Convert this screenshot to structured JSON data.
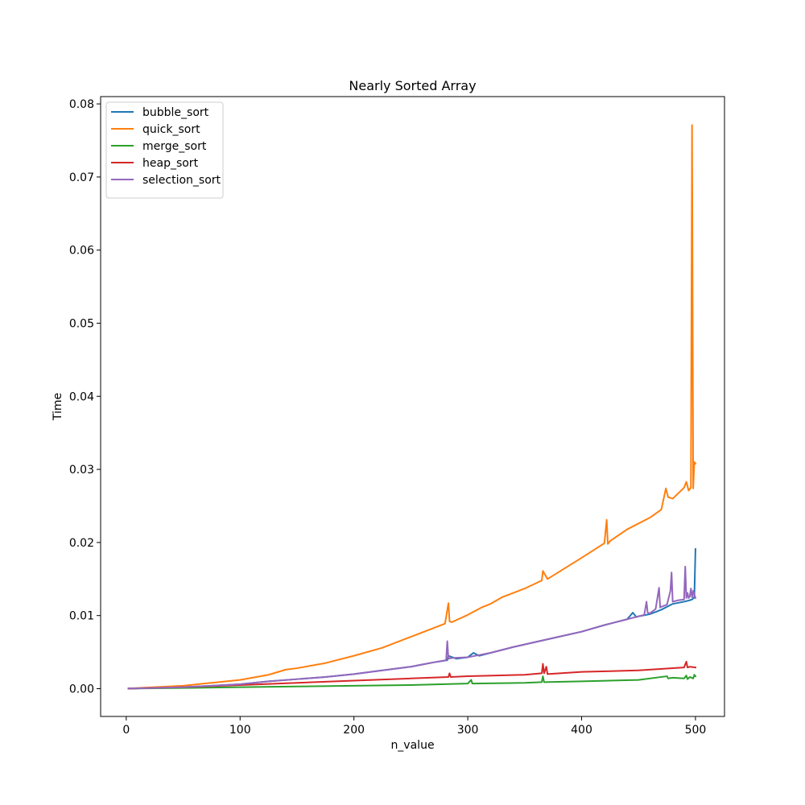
{
  "chart_data": {
    "type": "line",
    "title": "Nearly Sorted Array",
    "xlabel": "n_value",
    "ylabel": "Time",
    "xlim": [
      -22.5,
      525.5
    ],
    "ylim": [
      -0.0038,
      0.081
    ],
    "xticks": [
      0,
      100,
      200,
      300,
      400,
      500
    ],
    "xtick_labels": [
      "0",
      "100",
      "200",
      "300",
      "400",
      "500"
    ],
    "yticks": [
      0.0,
      0.01,
      0.02,
      0.03,
      0.04,
      0.05,
      0.06,
      0.07,
      0.08
    ],
    "ytick_labels": [
      "0.00",
      "0.01",
      "0.02",
      "0.03",
      "0.04",
      "0.05",
      "0.06",
      "0.07",
      "0.08"
    ],
    "grid": false,
    "legend_position": "top-left",
    "series": [
      {
        "name": "bubble_sort",
        "color": "#1f77b4",
        "x": [
          2,
          25,
          50,
          75,
          100,
          125,
          150,
          175,
          200,
          225,
          250,
          260,
          270,
          282,
          283,
          290,
          300,
          305,
          310,
          320,
          340,
          360,
          380,
          400,
          420,
          440,
          445,
          448,
          450,
          460,
          470,
          480,
          490,
          495,
          497,
          499,
          500
        ],
        "y": [
          2e-05,
          0.0001,
          0.0002,
          0.0004,
          0.0006,
          0.001,
          0.0013,
          0.0016,
          0.002,
          0.0025,
          0.003,
          0.0033,
          0.0036,
          0.0039,
          0.0045,
          0.0041,
          0.0043,
          0.0049,
          0.0045,
          0.0049,
          0.0057,
          0.0064,
          0.0071,
          0.0078,
          0.0087,
          0.0095,
          0.0104,
          0.0098,
          0.0099,
          0.0102,
          0.0108,
          0.0116,
          0.0119,
          0.0121,
          0.0122,
          0.0125,
          0.0191
        ]
      },
      {
        "name": "quick_sort",
        "color": "#ff7f0e",
        "x": [
          2,
          25,
          50,
          75,
          100,
          125,
          140,
          150,
          175,
          200,
          225,
          250,
          270,
          280,
          283,
          284,
          286,
          300,
          312,
          320,
          330,
          350,
          365,
          366,
          370,
          400,
          420,
          422,
          423,
          425,
          440,
          460,
          470,
          474,
          476,
          480,
          490,
          492,
          494,
          496,
          497,
          498,
          499,
          500
        ],
        "y": [
          2e-05,
          0.0002,
          0.0004,
          0.0008,
          0.0012,
          0.0019,
          0.0026,
          0.0028,
          0.0035,
          0.0045,
          0.0056,
          0.0071,
          0.0083,
          0.0089,
          0.0117,
          0.0092,
          0.0091,
          0.0101,
          0.0111,
          0.0116,
          0.0125,
          0.0137,
          0.0148,
          0.0161,
          0.015,
          0.0179,
          0.0199,
          0.0231,
          0.0198,
          0.0202,
          0.0218,
          0.0234,
          0.0245,
          0.0274,
          0.0262,
          0.026,
          0.0275,
          0.0283,
          0.0271,
          0.0275,
          0.0771,
          0.0274,
          0.031,
          0.0308
        ]
      },
      {
        "name": "merge_sort",
        "color": "#2ca02c",
        "x": [
          2,
          50,
          100,
          150,
          200,
          250,
          300,
          303,
          304,
          350,
          365,
          366,
          367,
          400,
          450,
          475,
          476,
          480,
          490,
          492,
          493,
          495,
          498,
          499,
          500
        ],
        "y": [
          1e-05,
          0.0001,
          0.0002,
          0.0003,
          0.0004,
          0.0005,
          0.0007,
          0.0012,
          0.0007,
          0.0008,
          0.0009,
          0.0017,
          0.0009,
          0.001,
          0.0012,
          0.0017,
          0.0014,
          0.0015,
          0.0014,
          0.0018,
          0.0013,
          0.0016,
          0.0014,
          0.0019,
          0.0017
        ]
      },
      {
        "name": "heap_sort",
        "color": "#d62728",
        "x": [
          2,
          50,
          100,
          150,
          200,
          250,
          283,
          284,
          285,
          300,
          350,
          365,
          366,
          367,
          369,
          370,
          400,
          450,
          490,
          492,
          493,
          495,
          500
        ],
        "y": [
          2e-05,
          0.0002,
          0.0005,
          0.0008,
          0.0011,
          0.0014,
          0.0016,
          0.0021,
          0.0016,
          0.0017,
          0.0019,
          0.0021,
          0.0034,
          0.0021,
          0.003,
          0.002,
          0.0023,
          0.0025,
          0.0029,
          0.0037,
          0.0029,
          0.003,
          0.0029
        ]
      },
      {
        "name": "selection_sort",
        "color": "#9467bd",
        "x": [
          2,
          25,
          50,
          75,
          100,
          125,
          150,
          175,
          200,
          225,
          250,
          260,
          270,
          281,
          282,
          283,
          286,
          300,
          320,
          340,
          360,
          380,
          400,
          420,
          440,
          455,
          457,
          458,
          460,
          465,
          468,
          469,
          470,
          475,
          478,
          479,
          480,
          485,
          490,
          491,
          492,
          493,
          494,
          495,
          496,
          497,
          498,
          500
        ],
        "y": [
          2e-05,
          0.0001,
          0.0002,
          0.0004,
          0.0006,
          0.001,
          0.0013,
          0.0016,
          0.002,
          0.0025,
          0.003,
          0.0033,
          0.0036,
          0.0039,
          0.0065,
          0.0041,
          0.0042,
          0.0043,
          0.0049,
          0.0057,
          0.0064,
          0.0071,
          0.0078,
          0.0087,
          0.0095,
          0.0101,
          0.0119,
          0.0104,
          0.0103,
          0.0109,
          0.0138,
          0.0111,
          0.0112,
          0.0115,
          0.0134,
          0.0159,
          0.0119,
          0.0121,
          0.0122,
          0.0167,
          0.0124,
          0.0131,
          0.0124,
          0.0126,
          0.0137,
          0.0125,
          0.0134,
          0.0124
        ]
      }
    ]
  }
}
